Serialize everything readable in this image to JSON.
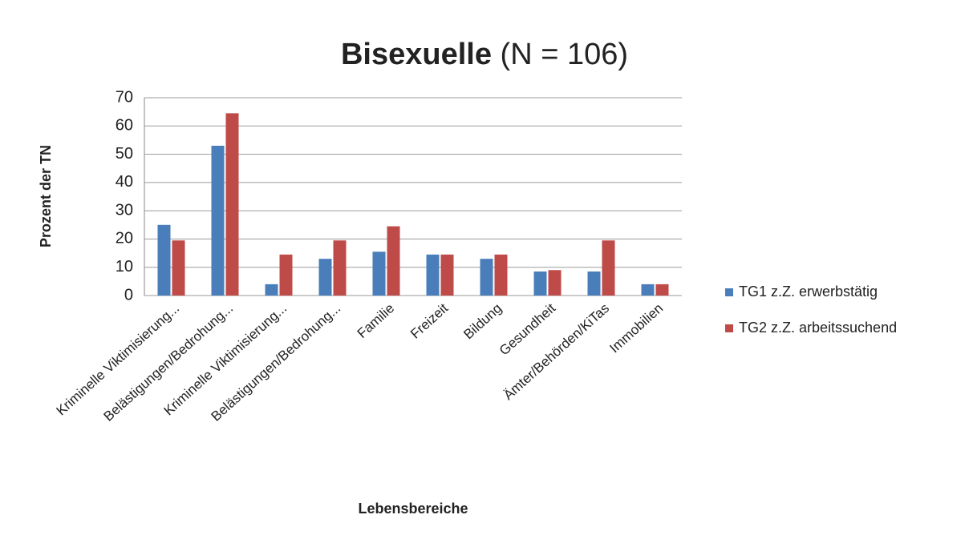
{
  "chart_data": {
    "type": "bar",
    "title": "Bisexuelle",
    "title_note": "(N = 106)",
    "y_label": "Prozent der TN",
    "x_label": "Lebensbereiche",
    "categories": [
      "Kriminelle Viktimisierung...",
      "Belästigungen/Bedrohung...",
      "Kriminelle Viktimisierung...",
      "Belästigungen/Bedrohung...",
      "Familie",
      "Freizeit",
      "Bildung",
      "Gesundheit",
      "Ämter/Behörden/KiTas",
      "Immobilien"
    ],
    "series": [
      {
        "name": "TG1 z.Z. erwerbstätig",
        "color": "#4a7ebb",
        "values": [
          25,
          53,
          4,
          13,
          15.5,
          14.5,
          13,
          8.5,
          8.5,
          4
        ]
      },
      {
        "name": "TG2 z.Z. arbeitssuchend",
        "color": "#be4b48",
        "values": [
          19.5,
          64.5,
          14.5,
          19.5,
          24.5,
          14.5,
          14.5,
          9,
          19.5,
          4
        ]
      }
    ],
    "ylim": [
      0,
      70
    ],
    "yticks": [
      0,
      10,
      20,
      30,
      40,
      50,
      60,
      70
    ],
    "grid": true,
    "legend": "right"
  }
}
